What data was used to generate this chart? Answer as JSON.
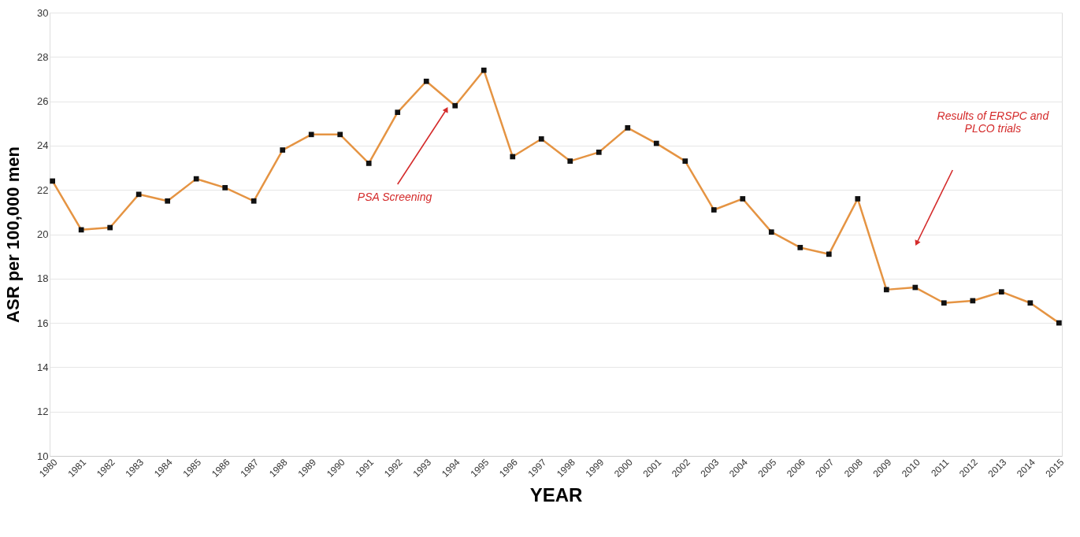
{
  "chart_data": {
    "type": "line",
    "xlabel": "YEAR",
    "ylabel": "ASR per 100,000 men",
    "categories": [
      "1980",
      "1981",
      "1982",
      "1983",
      "1984",
      "1985",
      "1986",
      "1987",
      "1988",
      "1989",
      "1990",
      "1991",
      "1992",
      "1993",
      "1994",
      "1995",
      "1996",
      "1997",
      "1998",
      "1999",
      "2000",
      "2001",
      "2002",
      "2003",
      "2004",
      "2005",
      "2006",
      "2007",
      "2008",
      "2009",
      "2010",
      "2011",
      "2012",
      "2013",
      "2014",
      "2015"
    ],
    "series": [
      {
        "color": "#e59443",
        "values": [
          22.4,
          20.2,
          20.3,
          21.8,
          21.5,
          22.5,
          22.1,
          21.5,
          23.8,
          24.5,
          24.5,
          23.2,
          25.5,
          26.9,
          25.8,
          27.4,
          23.5,
          24.3,
          23.3,
          23.7,
          24.8,
          24.1,
          23.3,
          21.1,
          21.6,
          20.1,
          19.4,
          19.1,
          21.6,
          17.5,
          17.6,
          16.9,
          17.0,
          17.4,
          16.9,
          16.0
        ]
      }
    ],
    "ylim": [
      10,
      30
    ],
    "yticks": [
      10,
      12,
      14,
      16,
      18,
      20,
      22,
      24,
      26,
      28,
      30
    ],
    "grid": "y",
    "marker": "square",
    "line_style": "solid",
    "annotations": [
      "PSA Screening",
      "Results of ERSPC and\nPLCO trials"
    ]
  }
}
